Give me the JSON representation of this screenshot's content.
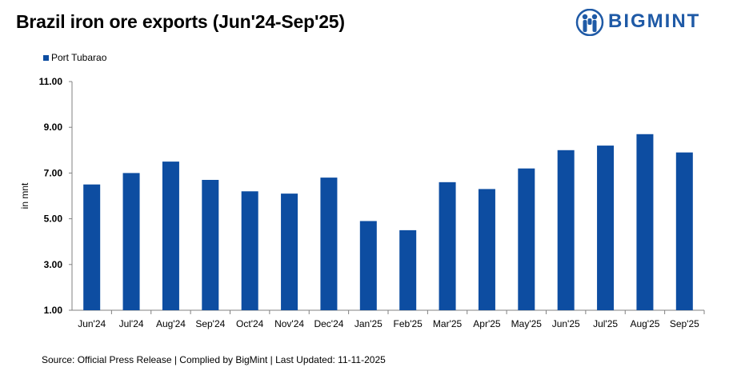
{
  "title": "Brazil iron ore exports (Jun'24-Sep'25)",
  "logo_text": "BIGMINT",
  "source": "Source:  Official Press Release  | Complied  by BigMint | Last Updated:  11-11-2025",
  "colors": {
    "bar": "#0d4da1",
    "axis": "#808080",
    "logo": "#1f5aa6"
  },
  "chart_data": {
    "type": "bar",
    "title": "Brazil iron ore exports (Jun'24-Sep'25)",
    "xlabel": "",
    "ylabel": "in mnt",
    "ylim": [
      1,
      11
    ],
    "yticks": [
      "1.00",
      "3.00",
      "5.00",
      "7.00",
      "9.00",
      "11.00"
    ],
    "grid": false,
    "legend_position": "top-left",
    "categories": [
      "Jun'24",
      "Jul'24",
      "Aug'24",
      "Sep'24",
      "Oct'24",
      "Nov'24",
      "Dec'24",
      "Jan'25",
      "Feb'25",
      "Mar'25",
      "Apr'25",
      "May'25",
      "Jun'25",
      "Jul'25",
      "Aug'25",
      "Sep'25"
    ],
    "series": [
      {
        "name": "Port Tubarao",
        "values": [
          6.5,
          7.0,
          7.5,
          6.7,
          6.2,
          6.1,
          6.8,
          4.9,
          4.5,
          6.6,
          6.3,
          7.2,
          8.0,
          8.2,
          8.7,
          7.9
        ]
      }
    ]
  }
}
